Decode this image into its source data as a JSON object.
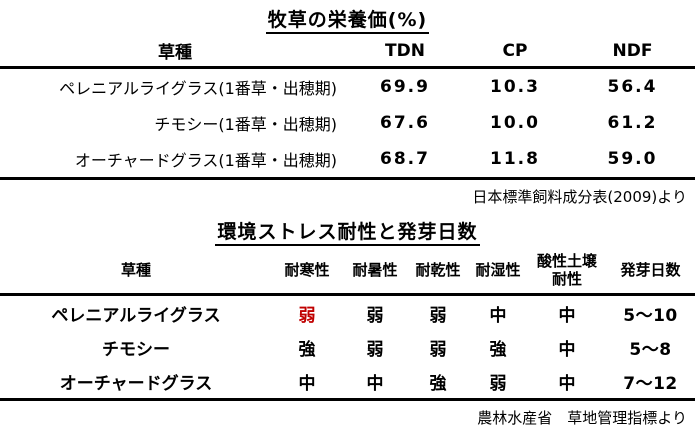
{
  "colors": {
    "background": "#ffffff",
    "text": "#000000",
    "highlight_red": "#c00000"
  },
  "table1": {
    "title": "牧草の栄養価(%)",
    "columns": [
      "草種",
      "TDN",
      "CP",
      "NDF"
    ],
    "rows": [
      {
        "label": "ペレニアルライグラス(1番草・出穂期)",
        "values": [
          "69.9",
          "10.3",
          "56.4"
        ]
      },
      {
        "label": "チモシー(1番草・出穂期)",
        "values": [
          "67.6",
          "10.0",
          "61.2"
        ]
      },
      {
        "label": "オーチャードグラス(1番草・出穂期)",
        "values": [
          "68.7",
          "11.8",
          "59.0"
        ]
      }
    ],
    "source": "日本標準飼料成分表(2009)より"
  },
  "table2": {
    "title": "環境ストレス耐性と発芽日数",
    "columns": [
      "草種",
      "耐寒性",
      "耐暑性",
      "耐乾性",
      "耐湿性",
      "酸性土壌耐性",
      "発芽日数"
    ],
    "rows": [
      {
        "label": "ペレニアルライグラス",
        "values": [
          "弱",
          "弱",
          "弱",
          "中",
          "中",
          "5〜10"
        ],
        "cold_value_red": true
      },
      {
        "label": "チモシー",
        "values": [
          "強",
          "弱",
          "弱",
          "強",
          "中",
          "5〜8"
        ],
        "cold_value_red": false
      },
      {
        "label": "オーチャードグラス",
        "values": [
          "中",
          "中",
          "強",
          "弱",
          "中",
          "7〜12"
        ],
        "cold_value_red": false
      }
    ],
    "source": "農林水産省　草地管理指標より"
  }
}
